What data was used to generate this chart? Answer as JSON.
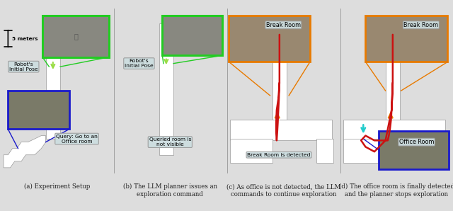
{
  "figure_width": 6.4,
  "figure_height": 2.98,
  "dpi": 100,
  "bg_color": "#607d8b",
  "map_color": "#ffffff",
  "map_edge": "#999999",
  "caption_color": "#222222",
  "caption_fontsize": 6.2,
  "label_bg": "#ccdde0",
  "label_edge": "#999999",
  "green_box": "#22cc22",
  "orange_box": "#e87a00",
  "blue_box": "#1a1acc",
  "red_path": "#cc1111",
  "green_arrow": "#99dd44",
  "orange_arrow": "#e87a00",
  "cyan_arrow": "#22cccc",
  "photo_bg": "#888880",
  "photo_bg2": "#998870",
  "captions": [
    "(a) Experiment Setup",
    "(b) The LLM planner issues an\nexploration command",
    "(c) As office is not detected, the LLM\ncommands to continue exploration",
    "(d) The office room is finally detected\nand the planner stops exploration"
  ]
}
